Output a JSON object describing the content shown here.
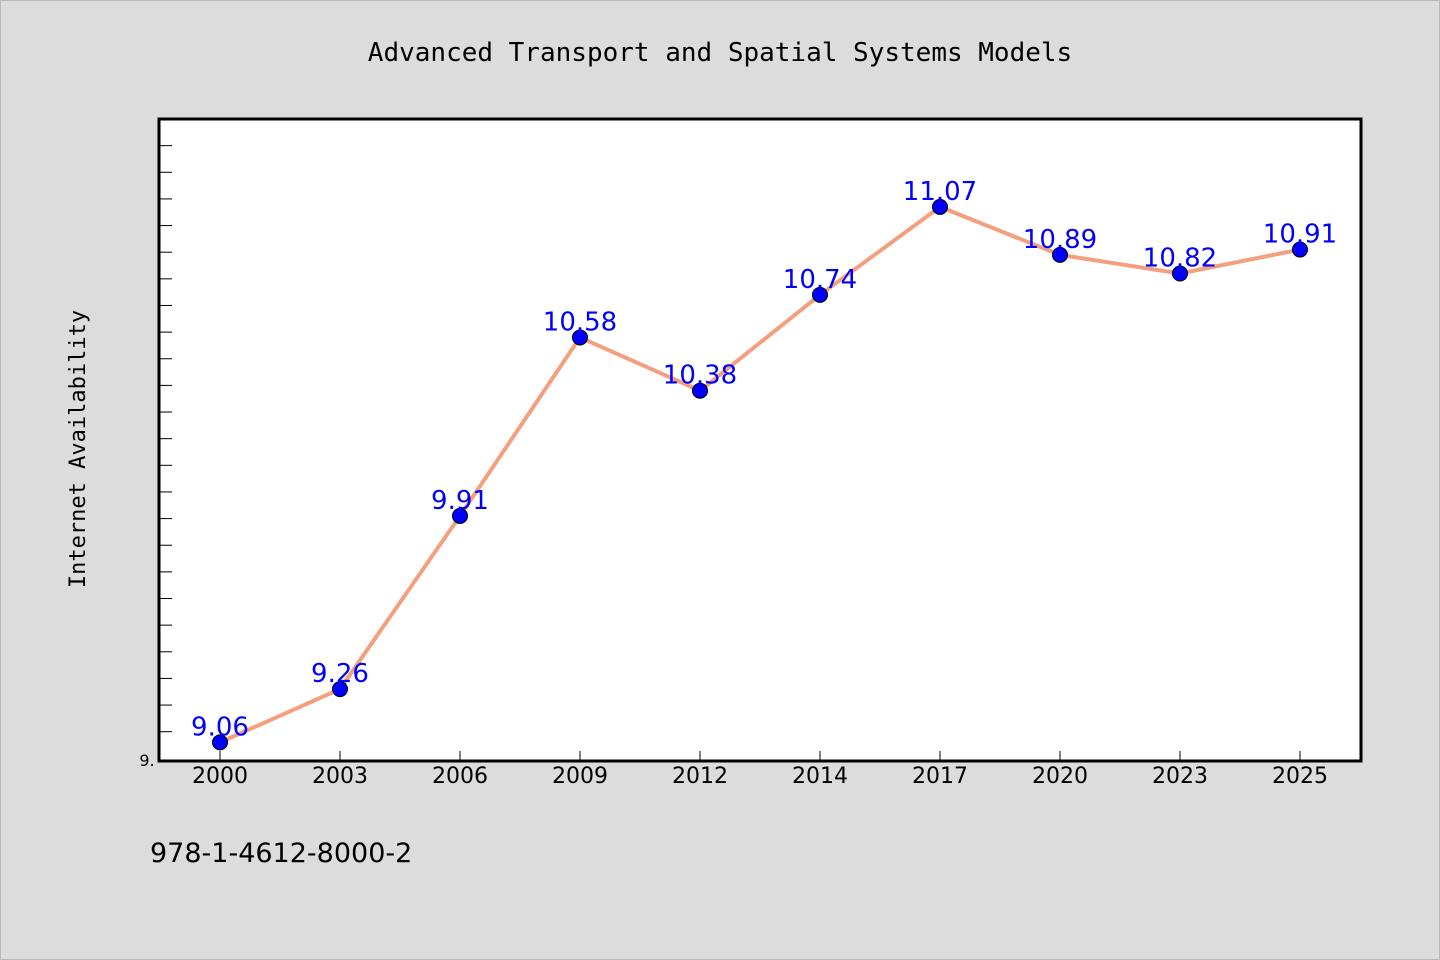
{
  "colors": {
    "background": "#dcdcdc",
    "plot_background": "#ffffff",
    "line": "#f4a07e",
    "marker": "#0000ff",
    "data_label": "#0000ff"
  },
  "footer": {
    "isbn": "978-1-4612-8000-2"
  },
  "chart_data": {
    "type": "line",
    "title": "Advanced Transport and Spatial Systems Models",
    "xlabel": "",
    "ylabel": "Internet Availability",
    "categories": [
      "2000",
      "2003",
      "2006",
      "2009",
      "2012",
      "2014",
      "2017",
      "2020",
      "2023",
      "2025"
    ],
    "series": [
      {
        "values": [
          9.06,
          9.26,
          9.91,
          10.58,
          10.38,
          10.74,
          11.07,
          10.89,
          10.82,
          10.91
        ]
      }
    ],
    "ytick_label": "9.",
    "ylim": [
      8.99,
      11.4
    ],
    "ytick_step": 0.1,
    "grid": false,
    "legend": "none",
    "marker": "circle",
    "data_labels": true
  }
}
